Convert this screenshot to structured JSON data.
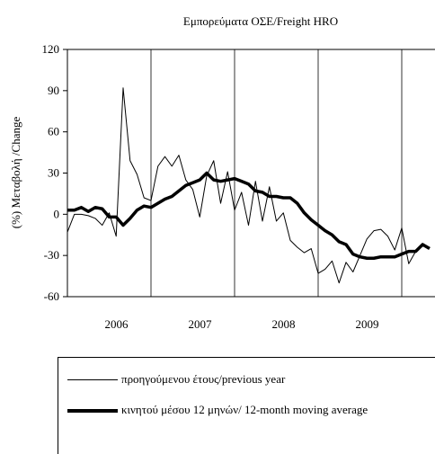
{
  "chart_data": {
    "type": "line",
    "title": "Εμπορεύματα ΟΣΕ/Freight HRO",
    "y_label": "(%) Μεταβολή /Change",
    "categories": [
      null,
      null,
      null,
      null,
      null,
      null,
      "2006",
      null,
      null,
      null,
      null,
      null,
      null,
      null,
      null,
      null,
      null,
      null,
      "2007",
      null,
      null,
      null,
      null,
      null,
      null,
      null,
      null,
      null,
      null,
      null,
      "2008",
      null,
      null,
      null,
      null,
      null,
      null,
      null,
      null,
      null,
      null,
      null,
      "2009",
      null,
      null,
      null,
      null,
      null,
      null,
      null,
      null,
      null,
      null
    ],
    "series": [
      {
        "name": "προηγούμενου έτους/previous year",
        "color": "#000000",
        "width": 1,
        "values": [
          -13,
          0,
          0,
          -1,
          -3,
          -8,
          1,
          -16,
          92,
          39,
          29,
          12,
          10,
          35,
          42,
          35,
          43,
          25,
          18,
          -2,
          28,
          39,
          8,
          31,
          3,
          16,
          -8,
          24,
          -5,
          20,
          -5,
          1,
          -19,
          -24,
          -28,
          -25,
          -43,
          -40,
          -34,
          -50,
          -35,
          -42,
          -30,
          -18,
          -12,
          -11,
          -16,
          -26,
          -10,
          -36,
          -27,
          -23,
          -24
        ]
      },
      {
        "name": "κινητού μέσου 12 μηνών/ 12-month moving average",
        "color": "#000000",
        "width": 3.5,
        "values": [
          3,
          3,
          5,
          2,
          5,
          4,
          -2,
          -2,
          -8,
          -3,
          3,
          6,
          5,
          8,
          11,
          13,
          17,
          21,
          23,
          25,
          30,
          25,
          24,
          25,
          26,
          24,
          22,
          17,
          16,
          13,
          13,
          12,
          12,
          8,
          1,
          -4,
          -8,
          -12,
          -15,
          -20,
          -22,
          -29,
          -31,
          -32,
          -32,
          -31,
          -31,
          -31,
          -29,
          -27,
          -27,
          -22,
          -25
        ]
      }
    ],
    "ylim": [
      -60,
      120
    ],
    "yticks": [
      -60,
      -30,
      0,
      30,
      60,
      90,
      120
    ]
  }
}
